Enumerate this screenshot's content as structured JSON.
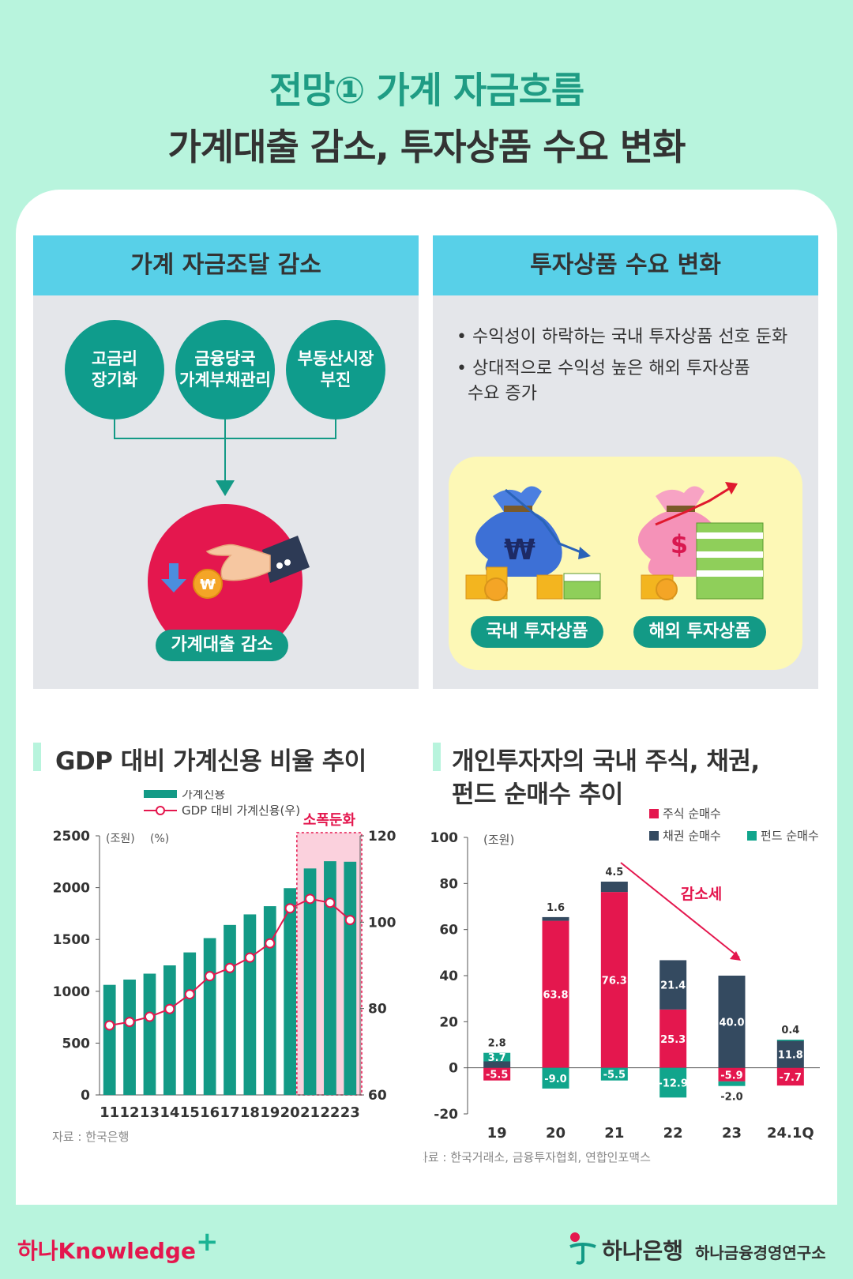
{
  "header": {
    "line1": "전망① 가계 자금흐름",
    "line2": "가계대출 감소, 투자상품 수요 변화"
  },
  "left_panel": {
    "title": "가계 자금조달 감소",
    "circles": [
      "고금리\n장기화",
      "금융당국\n가계부채관리",
      "부동산시장\n부진"
    ],
    "result_label": "가계대출 감소",
    "coin_symbol": "₩"
  },
  "right_panel": {
    "title": "투자상품 수요 변화",
    "bullets": [
      "수익성이 하락하는 국내 투자상품 선호 둔화",
      "상대적으로 수익성 높은 해외 투자상품",
      "수요 증가"
    ],
    "domestic_label": "국내 투자상품",
    "overseas_label": "해외 투자상품",
    "domestic_symbol": "₩",
    "overseas_symbol": "$"
  },
  "chart_data": [
    {
      "type": "bar",
      "title": "GDP 대비 가계신용 비율 추이",
      "categories": [
        "11",
        "12",
        "13",
        "14",
        "15",
        "16",
        "17",
        "18",
        "19",
        "20",
        "21",
        "22",
        "23"
      ],
      "series": [
        {
          "name": "가계신용",
          "type": "bar",
          "axis": "left",
          "values": [
            1062,
            1113,
            1170,
            1250,
            1375,
            1513,
            1640,
            1742,
            1821,
            1995,
            2185,
            2255,
            2250
          ]
        },
        {
          "name": "GDP 대비 가계신용(우)",
          "type": "line",
          "axis": "right",
          "values": [
            76.1,
            76.9,
            78.1,
            79.9,
            83.3,
            87.5,
            89.4,
            91.8,
            95.1,
            103.2,
            105.4,
            104.5,
            100.5
          ]
        }
      ],
      "y_left_unit": "(조원)",
      "y_right_unit": "(%)",
      "y_left_ticks": [
        "2500",
        "2000",
        "1500",
        "1000",
        "500",
        "0"
      ],
      "y_right_ticks": [
        "120",
        "100",
        "80",
        "60"
      ],
      "y_left_range": [
        0,
        2500
      ],
      "y_right_range": [
        60,
        120
      ],
      "highlight_label": "소폭둔화",
      "source": "자료 : 한국은행"
    },
    {
      "type": "bar",
      "stacked": true,
      "title_line1": "개인투자자의 국내 주식, 채권,",
      "title_line2": "펀드 순매수 추이",
      "categories": [
        "19",
        "20",
        "21",
        "22",
        "23",
        "24.1Q"
      ],
      "series": [
        {
          "name": "주식 순매수",
          "color": "#e4174e",
          "values": [
            -5.5,
            63.8,
            76.3,
            25.3,
            -5.9,
            -7.7
          ]
        },
        {
          "name": "채권 순매수",
          "color": "#344a60",
          "values": [
            2.8,
            1.6,
            4.5,
            21.4,
            40.0,
            11.8
          ]
        },
        {
          "name": "펀드 순매수",
          "color": "#11a58c",
          "values": [
            3.7,
            -9.0,
            -5.5,
            -12.9,
            -2.0,
            0.4
          ]
        }
      ],
      "labels": {
        "stock": [
          "-5.5",
          "63.8",
          "76.3",
          "25.3",
          "-5.9",
          "-7.7"
        ],
        "bond": [
          "2.8",
          "1.6",
          "4.5",
          "21.4",
          "40.0",
          "11.8"
        ],
        "fund": [
          "3.7",
          "-9.0",
          "-5.5",
          "-12.9",
          "-2.0",
          "0.4"
        ]
      },
      "y_unit": "(조원)",
      "y_ticks": [
        "100",
        "80",
        "60",
        "40",
        "20",
        "0",
        "-20"
      ],
      "y_range": [
        -20,
        100
      ],
      "trend_label": "감소세",
      "source": "자료 : 한국거래소, 금융투자협회, 연합인포맥스"
    }
  ],
  "footer": {
    "left_brand_a": "하나",
    "left_brand_b": "Knowledge",
    "right_brand": "하나은행",
    "right_institute": "하나금융경영연구소"
  }
}
